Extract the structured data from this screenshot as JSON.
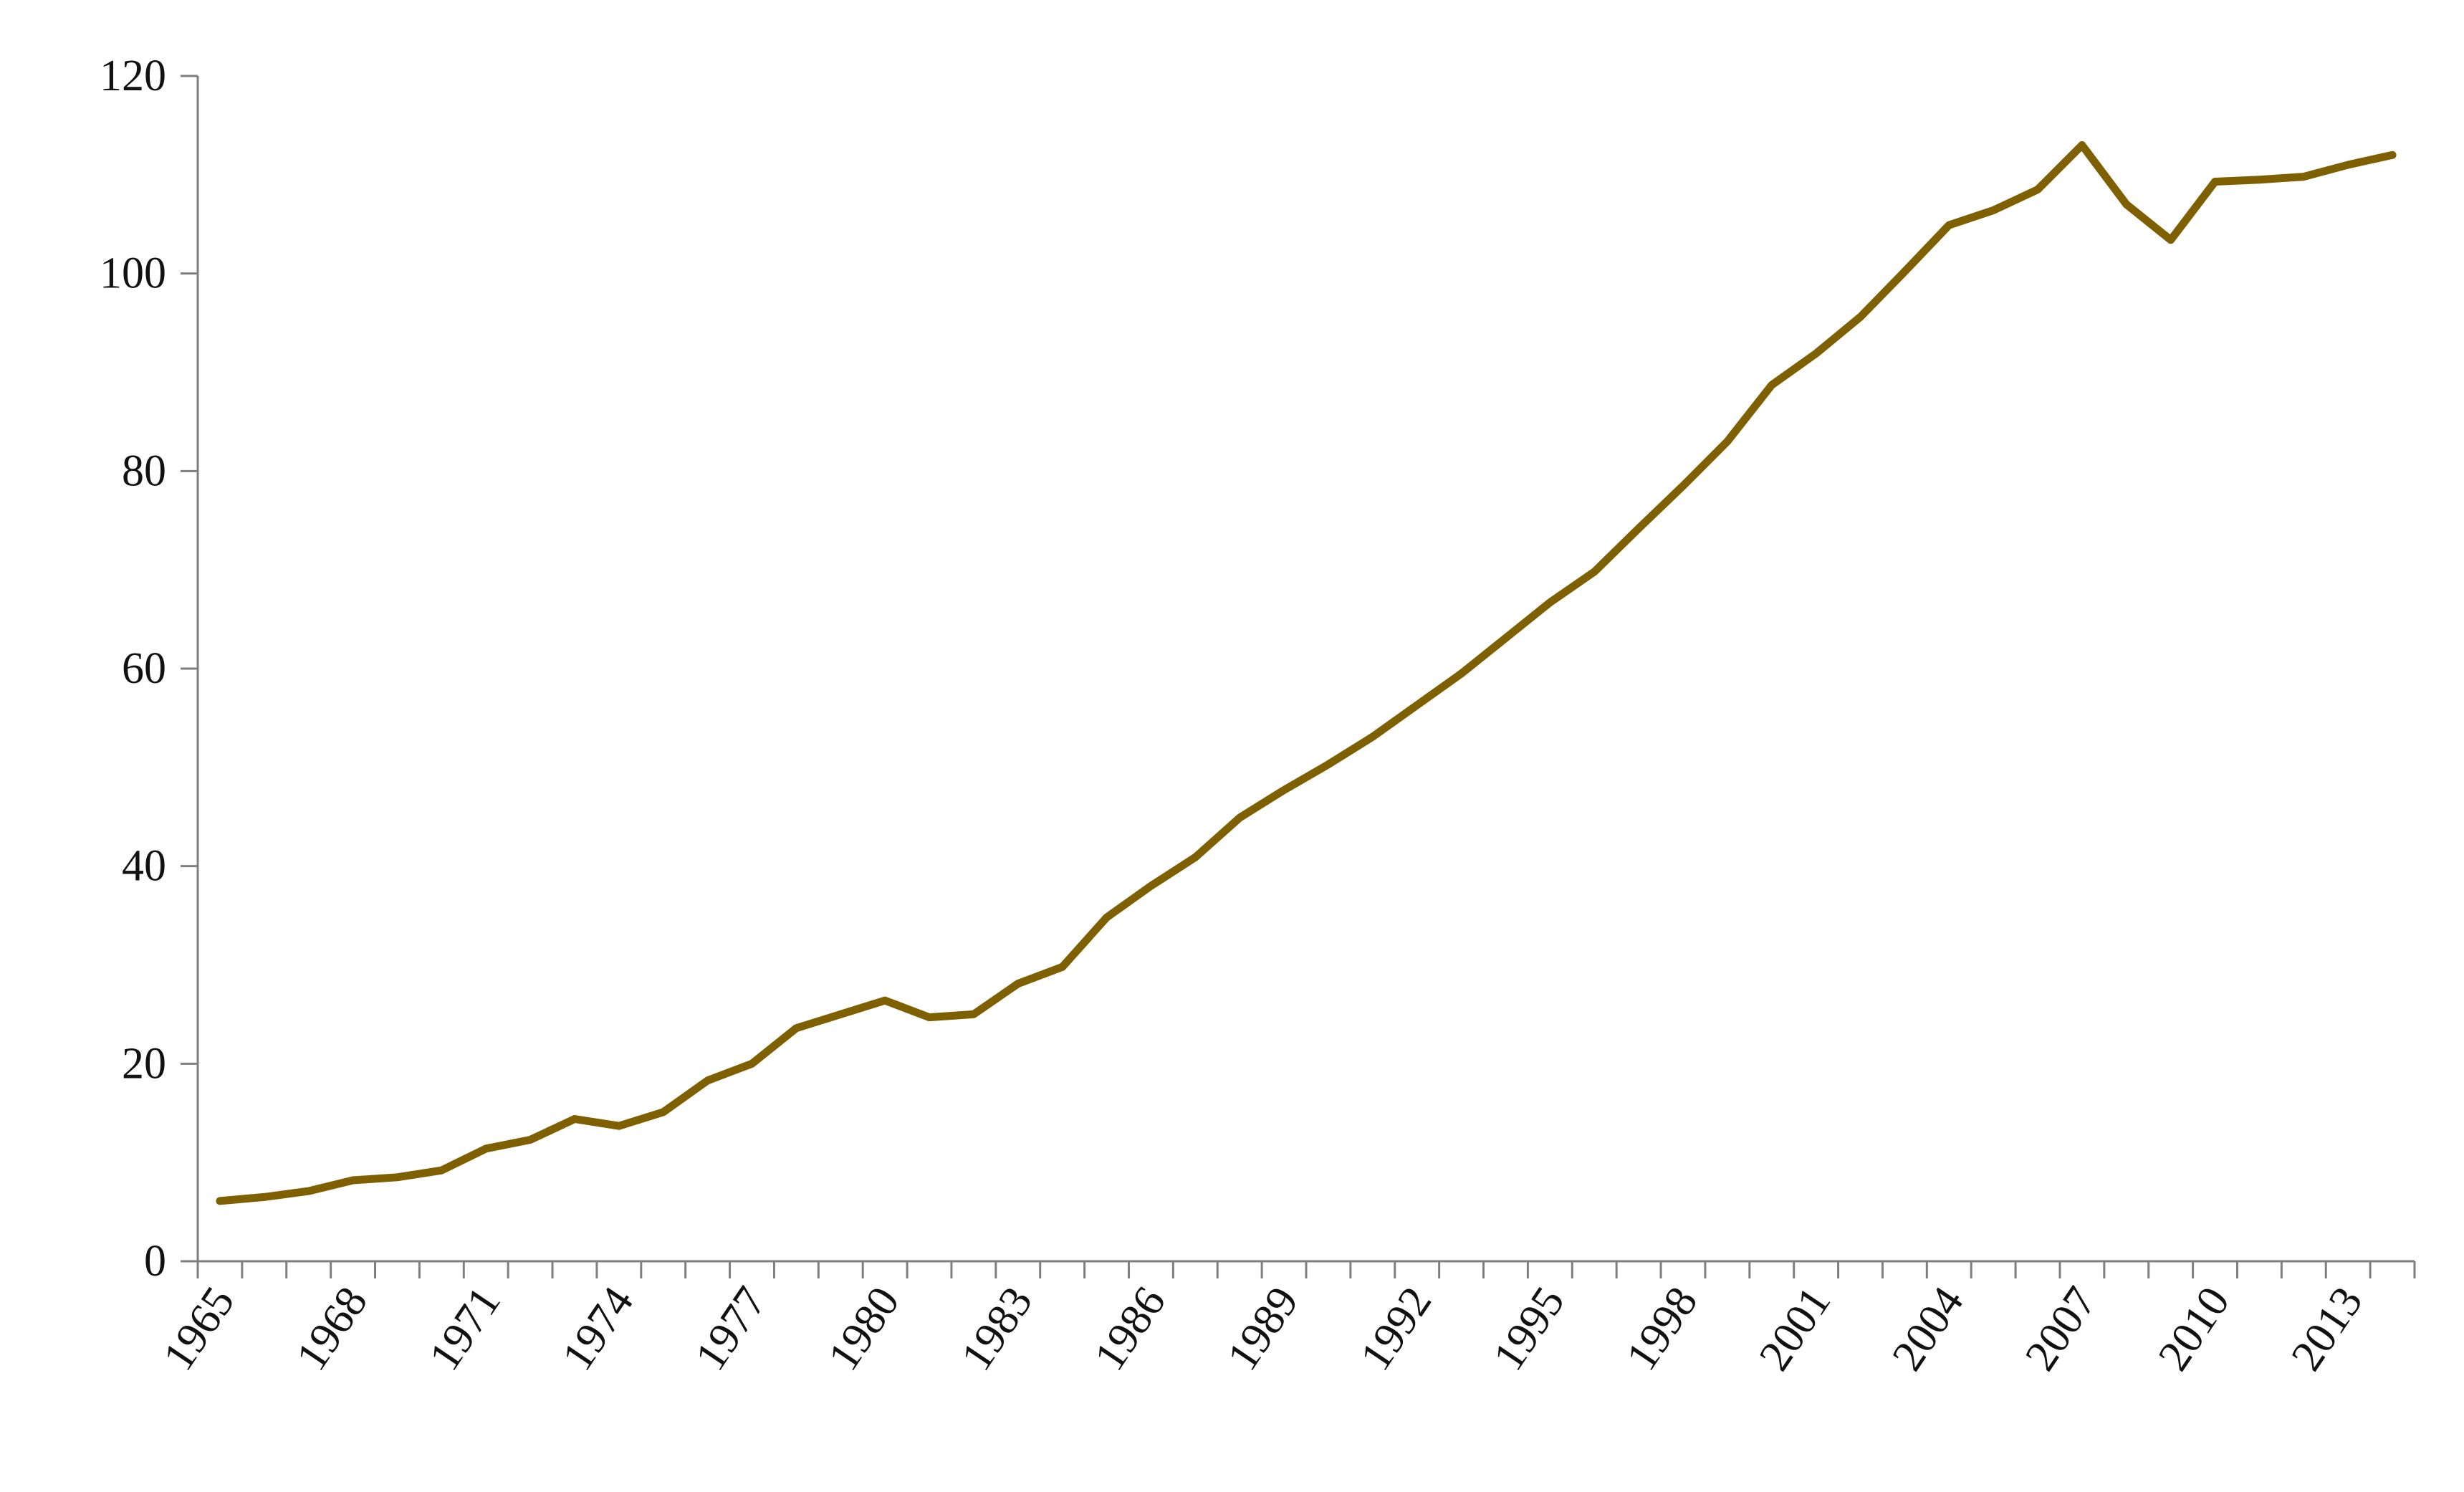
{
  "chart_data": {
    "type": "line",
    "title": "",
    "xlabel": "",
    "ylabel": "",
    "x": [
      1965,
      1966,
      1967,
      1968,
      1969,
      1970,
      1971,
      1972,
      1973,
      1974,
      1975,
      1976,
      1977,
      1978,
      1979,
      1980,
      1981,
      1982,
      1983,
      1984,
      1985,
      1986,
      1987,
      1988,
      1989,
      1990,
      1991,
      1992,
      1993,
      1994,
      1995,
      1996,
      1997,
      1998,
      1999,
      2000,
      2001,
      2002,
      2003,
      2004,
      2005,
      2006,
      2007,
      2008,
      2009,
      2010,
      2011,
      2012,
      2013,
      2014
    ],
    "series": [
      {
        "name": "",
        "color": "#7f6000",
        "values": [
          6.1,
          6.5,
          7.1,
          8.2,
          8.5,
          9.2,
          11.4,
          12.3,
          14.4,
          13.7,
          15.1,
          18.3,
          20.0,
          23.6,
          25.0,
          26.4,
          24.7,
          25.0,
          28.1,
          29.8,
          34.8,
          38.0,
          40.9,
          44.9,
          47.7,
          50.3,
          53.1,
          56.3,
          59.5,
          63.1,
          66.7,
          69.8,
          74.2,
          78.5,
          83.0,
          88.7,
          91.9,
          95.6,
          100.2,
          104.9,
          106.4,
          108.5,
          113.0,
          107.0,
          103.4,
          109.3,
          109.5,
          109.8,
          111.0,
          112.0
        ]
      }
    ],
    "xticks": [
      "1965",
      "1968",
      "1971",
      "1974",
      "1977",
      "1980",
      "1983",
      "1986",
      "1989",
      "1992",
      "1995",
      "1998",
      "2001",
      "2004",
      "2007",
      "2010",
      "2013"
    ],
    "yticks": [
      "0",
      "20",
      "40",
      "60",
      "80",
      "100",
      "120"
    ],
    "ylim": [
      0,
      120
    ],
    "grid": false,
    "legend": "none"
  }
}
